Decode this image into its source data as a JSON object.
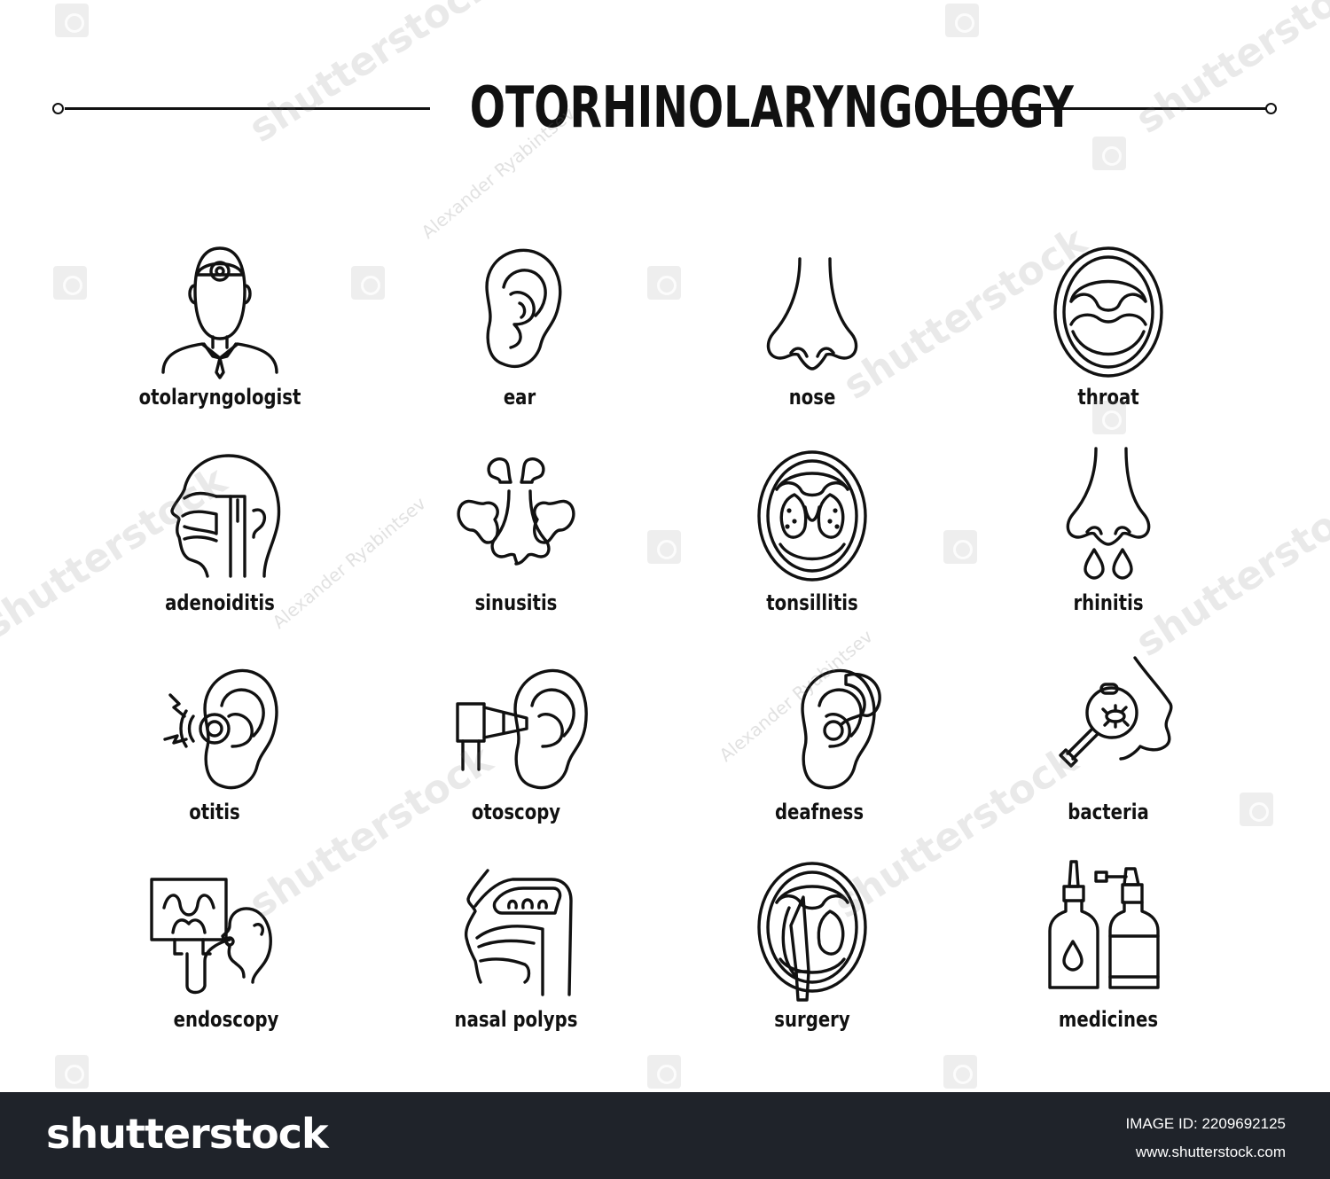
{
  "title": "OTORHINOLARYNGOLOGY",
  "icons": [
    {
      "label": "otolaryngologist",
      "icon": "doctor-with-head-mirror-icon"
    },
    {
      "label": "ear",
      "icon": "ear-icon"
    },
    {
      "label": "nose",
      "icon": "nose-icon"
    },
    {
      "label": "throat",
      "icon": "open-mouth-throat-icon"
    },
    {
      "label": "adenoiditis",
      "icon": "head-cross-section-icon"
    },
    {
      "label": "sinusitis",
      "icon": "sinuses-icon"
    },
    {
      "label": "tonsillitis",
      "icon": "inflamed-tonsils-icon"
    },
    {
      "label": "rhinitis",
      "icon": "runny-nose-icon"
    },
    {
      "label": "otitis",
      "icon": "painful-ear-icon"
    },
    {
      "label": "otoscopy",
      "icon": "otoscope-ear-icon"
    },
    {
      "label": "deafness",
      "icon": "hearing-aid-ear-icon"
    },
    {
      "label": "bacteria",
      "icon": "magnifier-bacteria-icon"
    },
    {
      "label": "endoscopy",
      "icon": "endoscopy-monitor-icon"
    },
    {
      "label": "nasal polyps",
      "icon": "nasal-polyps-icon"
    },
    {
      "label": "surgery",
      "icon": "throat-surgery-icon"
    },
    {
      "label": "medicines",
      "icon": "nasal-spray-bottles-icon"
    }
  ],
  "watermark": {
    "brand": "shutterstock",
    "author": "Alexander Ryabintsev"
  },
  "footer": {
    "logo": "shutterstock",
    "image_id_label": "IMAGE ID:",
    "image_id": "2209692125",
    "url": "www.shutterstock.com"
  },
  "colors": {
    "ink": "#111111",
    "background": "#ffffff",
    "footer_background": "#1f232a"
  }
}
